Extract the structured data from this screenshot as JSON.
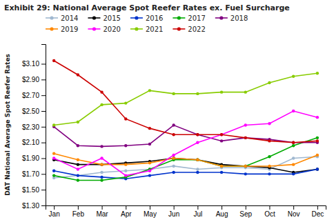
{
  "chart_data": {
    "type": "line",
    "title": "Exhibit 29: National Average Spot Reefer Rates ex. Fuel Surcharge",
    "y_label": "DAT National Average Spot Reefer Rates",
    "categories": [
      "Jan",
      "Feb",
      "Mar",
      "Apr",
      "May",
      "Jun",
      "Jul",
      "Aug",
      "Sep",
      "Oct",
      "Nov",
      "Dec"
    ],
    "series": [
      {
        "name": "2014",
        "color": "#a0b8d0",
        "values": [
          1.65,
          1.68,
          1.72,
          1.74,
          1.76,
          1.8,
          1.76,
          1.78,
          1.78,
          1.76,
          1.9,
          1.92
        ]
      },
      {
        "name": "2015",
        "color": "#000000",
        "values": [
          1.88,
          1.82,
          1.82,
          1.84,
          1.86,
          1.9,
          1.88,
          1.82,
          1.8,
          1.78,
          1.72,
          1.76
        ]
      },
      {
        "name": "2016",
        "color": "#0033cc",
        "values": [
          1.74,
          1.68,
          1.66,
          1.64,
          1.68,
          1.72,
          1.72,
          1.72,
          1.7,
          1.7,
          1.7,
          1.76
        ]
      },
      {
        "name": "2017",
        "color": "#00aa00",
        "values": [
          1.68,
          1.62,
          1.62,
          1.66,
          1.76,
          1.88,
          1.88,
          1.8,
          1.8,
          1.92,
          2.06,
          2.16
        ]
      },
      {
        "name": "2018",
        "color": "#800080",
        "values": [
          2.3,
          2.06,
          2.05,
          2.06,
          2.08,
          2.32,
          2.2,
          2.12,
          2.16,
          2.14,
          2.1,
          2.1
        ]
      },
      {
        "name": "2019",
        "color": "#ff8800",
        "values": [
          1.96,
          1.88,
          1.82,
          1.82,
          1.84,
          1.9,
          1.88,
          1.8,
          1.8,
          1.8,
          1.82,
          1.94
        ]
      },
      {
        "name": "2020",
        "color": "#ff00ff",
        "values": [
          1.9,
          1.76,
          1.9,
          1.68,
          1.74,
          1.94,
          2.1,
          2.2,
          2.32,
          2.34,
          2.5,
          2.42
        ]
      },
      {
        "name": "2021",
        "color": "#88cc00",
        "values": [
          2.32,
          2.36,
          2.58,
          2.6,
          2.76,
          2.72,
          2.72,
          2.74,
          2.74,
          2.86,
          2.94,
          2.98
        ]
      },
      {
        "name": "2022",
        "color": "#cc0000",
        "values": [
          3.14,
          2.96,
          2.74,
          2.4,
          2.28,
          2.2,
          2.2,
          2.2,
          2.16,
          2.12,
          2.1,
          2.12
        ]
      }
    ],
    "ylim": [
      1.3,
      3.35
    ],
    "yticks": [
      {
        "value": 1.3,
        "label": "$1.30"
      },
      {
        "value": 1.5,
        "label": "$1.50"
      },
      {
        "value": 1.7,
        "label": "$1.70"
      },
      {
        "value": 1.9,
        "label": "$1.90"
      },
      {
        "value": 2.1,
        "label": "$2.10"
      },
      {
        "value": 2.3,
        "label": "$2.30"
      },
      {
        "value": 2.5,
        "label": "$2.50"
      },
      {
        "value": 2.7,
        "label": "$2.70"
      },
      {
        "value": 2.9,
        "label": "$2.90"
      },
      {
        "value": 3.1,
        "label": "$3.10"
      }
    ],
    "marker": "circle",
    "grid": false,
    "legend": "top"
  }
}
